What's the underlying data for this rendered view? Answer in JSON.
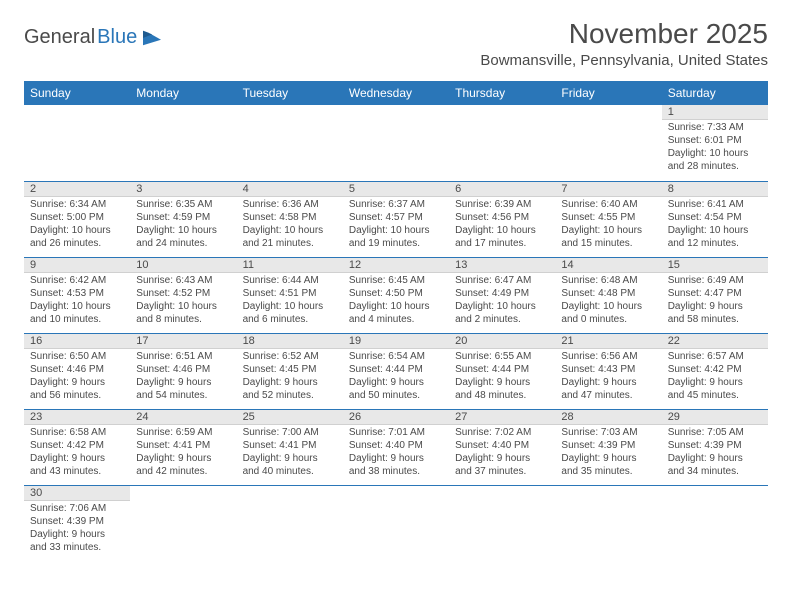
{
  "logo": {
    "text1": "General",
    "text2": "Blue"
  },
  "title": "November 2025",
  "location": "Bowmansville, Pennsylvania, United States",
  "colors": {
    "header_bg": "#2a76b8",
    "header_text": "#ffffff",
    "daynum_bg": "#e8e8e8",
    "border": "#2a76b8",
    "text": "#4a4a4a",
    "logo_blue": "#2a76b8"
  },
  "weekdays": [
    "Sunday",
    "Monday",
    "Tuesday",
    "Wednesday",
    "Thursday",
    "Friday",
    "Saturday"
  ],
  "weeks": [
    [
      null,
      null,
      null,
      null,
      null,
      null,
      {
        "n": "1",
        "sr": "Sunrise: 7:33 AM",
        "ss": "Sunset: 6:01 PM",
        "dl": "Daylight: 10 hours and 28 minutes."
      }
    ],
    [
      {
        "n": "2",
        "sr": "Sunrise: 6:34 AM",
        "ss": "Sunset: 5:00 PM",
        "dl": "Daylight: 10 hours and 26 minutes."
      },
      {
        "n": "3",
        "sr": "Sunrise: 6:35 AM",
        "ss": "Sunset: 4:59 PM",
        "dl": "Daylight: 10 hours and 24 minutes."
      },
      {
        "n": "4",
        "sr": "Sunrise: 6:36 AM",
        "ss": "Sunset: 4:58 PM",
        "dl": "Daylight: 10 hours and 21 minutes."
      },
      {
        "n": "5",
        "sr": "Sunrise: 6:37 AM",
        "ss": "Sunset: 4:57 PM",
        "dl": "Daylight: 10 hours and 19 minutes."
      },
      {
        "n": "6",
        "sr": "Sunrise: 6:39 AM",
        "ss": "Sunset: 4:56 PM",
        "dl": "Daylight: 10 hours and 17 minutes."
      },
      {
        "n": "7",
        "sr": "Sunrise: 6:40 AM",
        "ss": "Sunset: 4:55 PM",
        "dl": "Daylight: 10 hours and 15 minutes."
      },
      {
        "n": "8",
        "sr": "Sunrise: 6:41 AM",
        "ss": "Sunset: 4:54 PM",
        "dl": "Daylight: 10 hours and 12 minutes."
      }
    ],
    [
      {
        "n": "9",
        "sr": "Sunrise: 6:42 AM",
        "ss": "Sunset: 4:53 PM",
        "dl": "Daylight: 10 hours and 10 minutes."
      },
      {
        "n": "10",
        "sr": "Sunrise: 6:43 AM",
        "ss": "Sunset: 4:52 PM",
        "dl": "Daylight: 10 hours and 8 minutes."
      },
      {
        "n": "11",
        "sr": "Sunrise: 6:44 AM",
        "ss": "Sunset: 4:51 PM",
        "dl": "Daylight: 10 hours and 6 minutes."
      },
      {
        "n": "12",
        "sr": "Sunrise: 6:45 AM",
        "ss": "Sunset: 4:50 PM",
        "dl": "Daylight: 10 hours and 4 minutes."
      },
      {
        "n": "13",
        "sr": "Sunrise: 6:47 AM",
        "ss": "Sunset: 4:49 PM",
        "dl": "Daylight: 10 hours and 2 minutes."
      },
      {
        "n": "14",
        "sr": "Sunrise: 6:48 AM",
        "ss": "Sunset: 4:48 PM",
        "dl": "Daylight: 10 hours and 0 minutes."
      },
      {
        "n": "15",
        "sr": "Sunrise: 6:49 AM",
        "ss": "Sunset: 4:47 PM",
        "dl": "Daylight: 9 hours and 58 minutes."
      }
    ],
    [
      {
        "n": "16",
        "sr": "Sunrise: 6:50 AM",
        "ss": "Sunset: 4:46 PM",
        "dl": "Daylight: 9 hours and 56 minutes."
      },
      {
        "n": "17",
        "sr": "Sunrise: 6:51 AM",
        "ss": "Sunset: 4:46 PM",
        "dl": "Daylight: 9 hours and 54 minutes."
      },
      {
        "n": "18",
        "sr": "Sunrise: 6:52 AM",
        "ss": "Sunset: 4:45 PM",
        "dl": "Daylight: 9 hours and 52 minutes."
      },
      {
        "n": "19",
        "sr": "Sunrise: 6:54 AM",
        "ss": "Sunset: 4:44 PM",
        "dl": "Daylight: 9 hours and 50 minutes."
      },
      {
        "n": "20",
        "sr": "Sunrise: 6:55 AM",
        "ss": "Sunset: 4:44 PM",
        "dl": "Daylight: 9 hours and 48 minutes."
      },
      {
        "n": "21",
        "sr": "Sunrise: 6:56 AM",
        "ss": "Sunset: 4:43 PM",
        "dl": "Daylight: 9 hours and 47 minutes."
      },
      {
        "n": "22",
        "sr": "Sunrise: 6:57 AM",
        "ss": "Sunset: 4:42 PM",
        "dl": "Daylight: 9 hours and 45 minutes."
      }
    ],
    [
      {
        "n": "23",
        "sr": "Sunrise: 6:58 AM",
        "ss": "Sunset: 4:42 PM",
        "dl": "Daylight: 9 hours and 43 minutes."
      },
      {
        "n": "24",
        "sr": "Sunrise: 6:59 AM",
        "ss": "Sunset: 4:41 PM",
        "dl": "Daylight: 9 hours and 42 minutes."
      },
      {
        "n": "25",
        "sr": "Sunrise: 7:00 AM",
        "ss": "Sunset: 4:41 PM",
        "dl": "Daylight: 9 hours and 40 minutes."
      },
      {
        "n": "26",
        "sr": "Sunrise: 7:01 AM",
        "ss": "Sunset: 4:40 PM",
        "dl": "Daylight: 9 hours and 38 minutes."
      },
      {
        "n": "27",
        "sr": "Sunrise: 7:02 AM",
        "ss": "Sunset: 4:40 PM",
        "dl": "Daylight: 9 hours and 37 minutes."
      },
      {
        "n": "28",
        "sr": "Sunrise: 7:03 AM",
        "ss": "Sunset: 4:39 PM",
        "dl": "Daylight: 9 hours and 35 minutes."
      },
      {
        "n": "29",
        "sr": "Sunrise: 7:05 AM",
        "ss": "Sunset: 4:39 PM",
        "dl": "Daylight: 9 hours and 34 minutes."
      }
    ],
    [
      {
        "n": "30",
        "sr": "Sunrise: 7:06 AM",
        "ss": "Sunset: 4:39 PM",
        "dl": "Daylight: 9 hours and 33 minutes."
      },
      null,
      null,
      null,
      null,
      null,
      null
    ]
  ]
}
